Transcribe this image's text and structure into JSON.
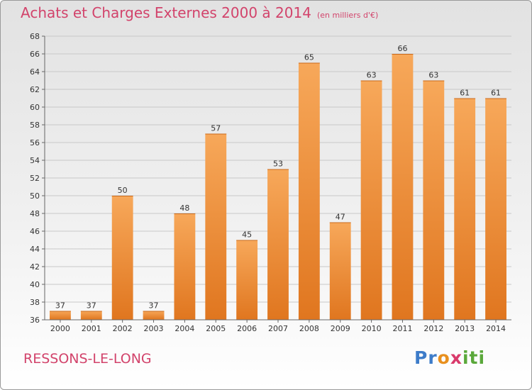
{
  "title": "Achats et Charges Externes 2000 à 2014",
  "subtitle": "(en milliers d'€)",
  "location": "RESSONS-LE-LONG",
  "logo": {
    "p": "Pr",
    "o": "o",
    "x": "x",
    "iti": "iti"
  },
  "colors": {
    "bar_light": "#f7a85a",
    "bar_dark": "#e0761f",
    "title": "#d2436b"
  },
  "chart_data": {
    "type": "bar",
    "title": "Achats et Charges Externes 2000 à 2014",
    "subtitle": "(en milliers d'€)",
    "xlabel": "",
    "ylabel": "",
    "categories": [
      "2000",
      "2001",
      "2002",
      "2003",
      "2004",
      "2005",
      "2006",
      "2007",
      "2008",
      "2009",
      "2010",
      "2011",
      "2012",
      "2013",
      "2014"
    ],
    "values": [
      37,
      37,
      50,
      37,
      48,
      57,
      45,
      53,
      65,
      47,
      63,
      66,
      63,
      61,
      61
    ],
    "ylim": [
      36,
      68
    ],
    "yticks": [
      36,
      38,
      40,
      42,
      44,
      46,
      48,
      50,
      52,
      54,
      56,
      58,
      60,
      62,
      64,
      66,
      68
    ],
    "grid": true,
    "legend": "none"
  }
}
